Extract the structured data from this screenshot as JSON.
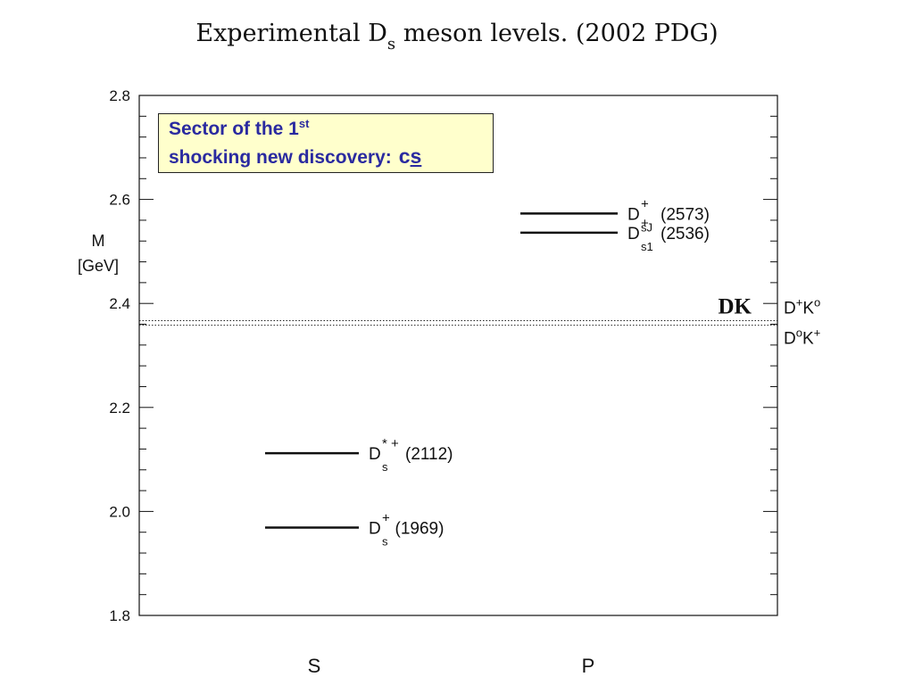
{
  "title": {
    "prefix": "Experimental D",
    "subscript": "s",
    "suffix": " meson levels. (2002 PDG)"
  },
  "note": {
    "line1": "Sector of the 1",
    "line1_sup": "st",
    "line2": "shocking new discovery:",
    "quark": "c",
    "antiquark": "s"
  },
  "chart_data": {
    "type": "level-diagram",
    "ylabel_line1": "M",
    "ylabel_line2": "[GeV]",
    "ylim": [
      1.8,
      2.8
    ],
    "yticks": [
      1.8,
      2.0,
      2.2,
      2.4,
      2.6,
      2.8
    ],
    "ytick_labels": [
      "1.8",
      "2.0",
      "2.2",
      "2.4",
      "2.6",
      "2.8"
    ],
    "categories": [
      "S",
      "P"
    ],
    "levels": [
      {
        "category": "S",
        "mass": 1.969,
        "base": "D",
        "sub": "s",
        "sup": "+",
        "mass_label": "(1969)"
      },
      {
        "category": "S",
        "mass": 2.112,
        "base": "D",
        "sub": "s",
        "sup": "* +",
        "mass_label": "(2112)"
      },
      {
        "category": "P",
        "mass": 2.536,
        "base": "D",
        "sub": "s1",
        "sup": "+",
        "mass_label": "(2536)"
      },
      {
        "category": "P",
        "mass": 2.573,
        "base": "D",
        "sub": "sJ",
        "sup": "+",
        "mass_label": "(2573)"
      }
    ],
    "thresholds": {
      "label": "DK",
      "values": [
        2.358,
        2.367
      ],
      "channels": [
        {
          "base1": "D",
          "sup1": "+",
          "base2": "K",
          "sup2": "o"
        },
        {
          "base1": "D",
          "sup1": "o",
          "base2": "K",
          "sup2": "+"
        }
      ]
    },
    "grid": false
  }
}
